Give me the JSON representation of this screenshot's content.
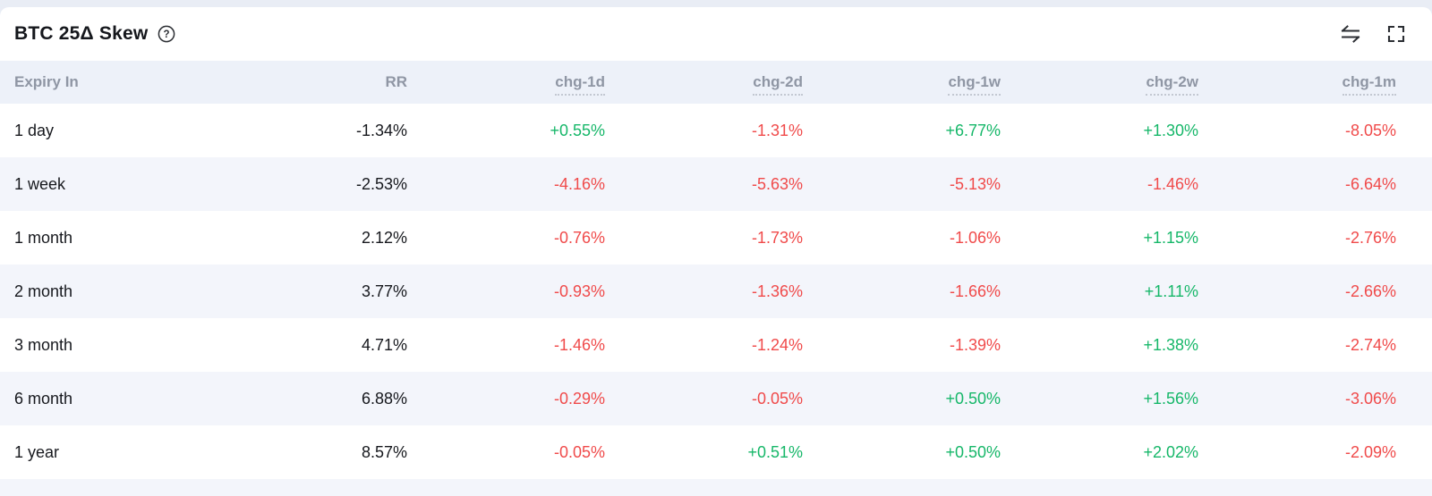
{
  "panel": {
    "title": "BTC 25Δ Skew",
    "icons": {
      "help": "question-mark-circle",
      "swap": "swap-arrows",
      "fullscreen": "expand-corners"
    }
  },
  "table": {
    "columns": [
      {
        "key": "expiry",
        "label": "Expiry In",
        "underlined": false
      },
      {
        "key": "rr",
        "label": "RR",
        "underlined": false
      },
      {
        "key": "chg_1d",
        "label": "chg-1d",
        "underlined": true
      },
      {
        "key": "chg_2d",
        "label": "chg-2d",
        "underlined": true
      },
      {
        "key": "chg_1w",
        "label": "chg-1w",
        "underlined": true
      },
      {
        "key": "chg_2w",
        "label": "chg-2w",
        "underlined": true
      },
      {
        "key": "chg_1m",
        "label": "chg-1m",
        "underlined": true
      }
    ],
    "rows": [
      {
        "cells": [
          "1 day",
          "-1.34%",
          "+0.55%",
          "-1.31%",
          "+6.77%",
          "+1.30%",
          "-8.05%"
        ]
      },
      {
        "cells": [
          "1 week",
          "-2.53%",
          "-4.16%",
          "-5.63%",
          "-5.13%",
          "-1.46%",
          "-6.64%"
        ]
      },
      {
        "cells": [
          "1 month",
          "2.12%",
          "-0.76%",
          "-1.73%",
          "-1.06%",
          "+1.15%",
          "-2.76%"
        ]
      },
      {
        "cells": [
          "2 month",
          "3.77%",
          "-0.93%",
          "-1.36%",
          "-1.66%",
          "+1.11%",
          "-2.66%"
        ]
      },
      {
        "cells": [
          "3 month",
          "4.71%",
          "-1.46%",
          "-1.24%",
          "-1.39%",
          "+1.38%",
          "-2.74%"
        ]
      },
      {
        "cells": [
          "6 month",
          "6.88%",
          "-0.29%",
          "-0.05%",
          "+0.50%",
          "+1.56%",
          "-3.06%"
        ]
      },
      {
        "cells": [
          "1 year",
          "8.57%",
          "-0.05%",
          "+0.51%",
          "+0.50%",
          "+2.02%",
          "-2.09%"
        ]
      }
    ]
  },
  "colors": {
    "positive": "#16b769",
    "negative": "#f04a4a",
    "header_bg": "#edf1f9",
    "row_stripe": "#f3f5fb",
    "page_bg": "#e9edf5",
    "header_text": "#8f96a4",
    "body_text": "#16181d"
  }
}
